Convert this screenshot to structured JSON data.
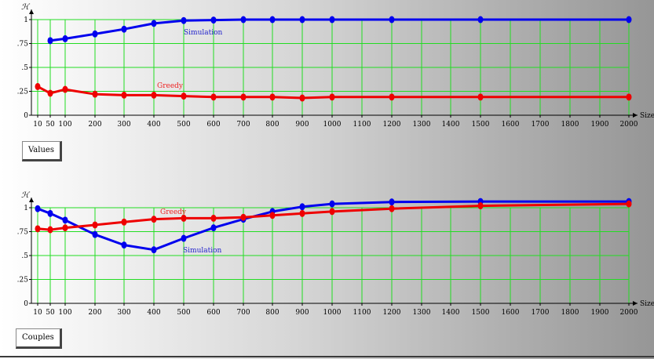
{
  "chart_data": [
    {
      "type": "line",
      "tab_label": "Values",
      "ylabel": "ℋ",
      "xlabel": "Size",
      "x_ticks": [
        "10",
        "50",
        "100",
        "200",
        "300",
        "400",
        "500",
        "600",
        "700",
        "800",
        "900",
        "1000",
        "1100",
        "1200",
        "1300",
        "1400",
        "1500",
        "1600",
        "1700",
        "1800",
        "1900",
        "2000"
      ],
      "y_ticks": [
        {
          "value": 0,
          "label": "0"
        },
        {
          "value": 0.25,
          "label": ".25"
        },
        {
          "value": 0.5,
          "label": ".5"
        },
        {
          "value": 0.75,
          "label": ".75"
        },
        {
          "value": 1,
          "label": "1"
        }
      ],
      "ylim": [
        0,
        1
      ],
      "grid": true,
      "series": [
        {
          "name": "Simulation",
          "color": "#0000ee",
          "x": [
            50,
            100,
            200,
            300,
            400,
            500,
            600,
            700,
            800,
            900,
            1000,
            1200,
            1500,
            2000
          ],
          "y": [
            0.78,
            0.8,
            0.85,
            0.9,
            0.96,
            0.99,
            0.995,
            1.0,
            1.0,
            1.0,
            1.0,
            1.0,
            1.0,
            1.0
          ]
        },
        {
          "name": "Greedy",
          "color": "#ee0000",
          "x": [
            10,
            50,
            100,
            200,
            300,
            400,
            500,
            600,
            700,
            800,
            900,
            1000,
            1200,
            1500,
            2000
          ],
          "y": [
            0.3,
            0.23,
            0.27,
            0.22,
            0.21,
            0.21,
            0.2,
            0.19,
            0.19,
            0.19,
            0.18,
            0.19,
            0.19,
            0.19,
            0.19
          ]
        }
      ],
      "labels": {
        "simulation_label": "Simulation",
        "greedy_label": "Greedy"
      }
    },
    {
      "type": "line",
      "tab_label": "Couples",
      "ylabel": "ℋ",
      "xlabel": "Size",
      "x_ticks": [
        "10",
        "50",
        "100",
        "200",
        "300",
        "400",
        "500",
        "600",
        "700",
        "800",
        "900",
        "1000",
        "1100",
        "1200",
        "1300",
        "1400",
        "1500",
        "1600",
        "1700",
        "1800",
        "1900",
        "2000"
      ],
      "y_ticks": [
        {
          "value": 0,
          "label": "0"
        },
        {
          "value": 0.25,
          "label": ".25"
        },
        {
          "value": 0.5,
          "label": ".5"
        },
        {
          "value": 0.75,
          "label": ".75"
        },
        {
          "value": 1,
          "label": "1"
        }
      ],
      "ylim": [
        0,
        1
      ],
      "grid": true,
      "series": [
        {
          "name": "Simulation",
          "color": "#0000ee",
          "x": [
            10,
            50,
            100,
            200,
            300,
            400,
            500,
            600,
            700,
            800,
            900,
            1000,
            1200,
            1500,
            2000
          ],
          "y": [
            0.99,
            0.94,
            0.87,
            0.72,
            0.61,
            0.56,
            0.68,
            0.79,
            0.88,
            0.96,
            1.01,
            1.04,
            1.06,
            1.065,
            1.065
          ]
        },
        {
          "name": "Greedy",
          "color": "#ee0000",
          "x": [
            10,
            50,
            100,
            200,
            300,
            400,
            500,
            600,
            700,
            800,
            900,
            1000,
            1200,
            1500,
            2000
          ],
          "y": [
            0.78,
            0.77,
            0.79,
            0.82,
            0.85,
            0.88,
            0.89,
            0.89,
            0.9,
            0.92,
            0.94,
            0.96,
            0.99,
            1.02,
            1.04
          ]
        }
      ],
      "labels": {
        "simulation_label": "Simulation",
        "greedy_label": "Greedy"
      }
    }
  ]
}
